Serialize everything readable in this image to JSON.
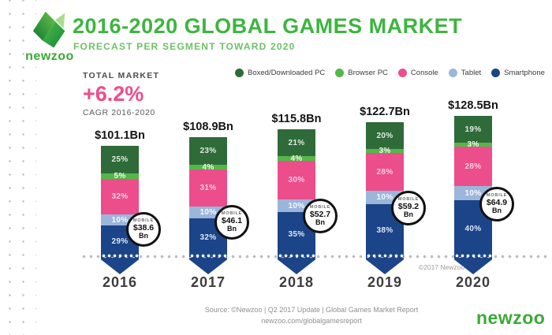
{
  "header": {
    "logo_text": "newzoo",
    "title": "2016-2020 GLOBAL GAMES MARKET",
    "subtitle": "FORECAST PER SEGMENT TOWARD 2020"
  },
  "total_market": {
    "label": "TOTAL MARKET",
    "value": "+6.2%",
    "sublabel": "CAGR 2016-2020"
  },
  "legend": [
    {
      "label": "Boxed/Downloaded PC",
      "color": "#2e6b39"
    },
    {
      "label": "Browser PC",
      "color": "#52b848"
    },
    {
      "label": "Console",
      "color": "#ee4c8c"
    },
    {
      "label": "Tablet",
      "color": "#9cb6db"
    },
    {
      "label": "Smartphone",
      "color": "#1b4489"
    }
  ],
  "chart_data": {
    "type": "bar",
    "stacked": true,
    "title": "2016-2020 GLOBAL GAMES MARKET",
    "subtitle": "FORECAST PER SEGMENT TOWARD 2020",
    "categories": [
      "2016",
      "2017",
      "2018",
      "2019",
      "2020"
    ],
    "totals_display": [
      "$101.1Bn",
      "$108.9Bn",
      "$115.8Bn",
      "$122.7Bn",
      "$128.5Bn"
    ],
    "totals_bn": [
      101.1,
      108.9,
      115.8,
      122.7,
      128.5
    ],
    "cagr": "+6.2%",
    "segment_order_top_to_bottom": [
      "Boxed/Downloaded PC",
      "Browser PC",
      "Console",
      "Tablet",
      "Smartphone"
    ],
    "series": [
      {
        "name": "Boxed/Downloaded PC",
        "color": "#2e6b39",
        "label_color": "rgba(255,255,255,0.85)",
        "pct": [
          25,
          23,
          21,
          20,
          19
        ]
      },
      {
        "name": "Browser PC",
        "color": "#52b848",
        "label_color": "#f2faee",
        "pct": [
          5,
          4,
          4,
          3,
          3
        ]
      },
      {
        "name": "Console",
        "color": "#ec4d8b",
        "label_color": "rgba(255,255,255,0.72)",
        "pct": [
          32,
          31,
          30,
          28,
          28
        ]
      },
      {
        "name": "Tablet",
        "color": "#9cb6db",
        "label_color": "#f6f9fd",
        "pct": [
          10,
          10,
          10,
          10,
          10
        ]
      },
      {
        "name": "Smartphone",
        "color": "#1b4489",
        "label_color": "#dfe8f5",
        "pct": [
          29,
          32,
          35,
          38,
          40
        ]
      }
    ],
    "mobile_badges": [
      {
        "label": "MOBILE",
        "value": "$38.6",
        "unit": "Bn"
      },
      {
        "label": "MOBILE",
        "value": "$46.1",
        "unit": "Bn"
      },
      {
        "label": "MOBILE",
        "value": "$52.7",
        "unit": "Bn"
      },
      {
        "label": "MOBILE",
        "value": "$59.2",
        "unit": "Bn"
      },
      {
        "label": "MOBILE",
        "value": "$64.9",
        "unit": "Bn"
      }
    ],
    "legend_position": "top-right",
    "grid": false
  },
  "annotations": {
    "copyright": "©2017 Newzoo"
  },
  "footer": {
    "source_line1": "Source: ©Newzoo | Q2 2017 Update | Global Games Market Report",
    "source_line2": "newzoo.com/globalgamesreport",
    "brand": "newzoo"
  }
}
